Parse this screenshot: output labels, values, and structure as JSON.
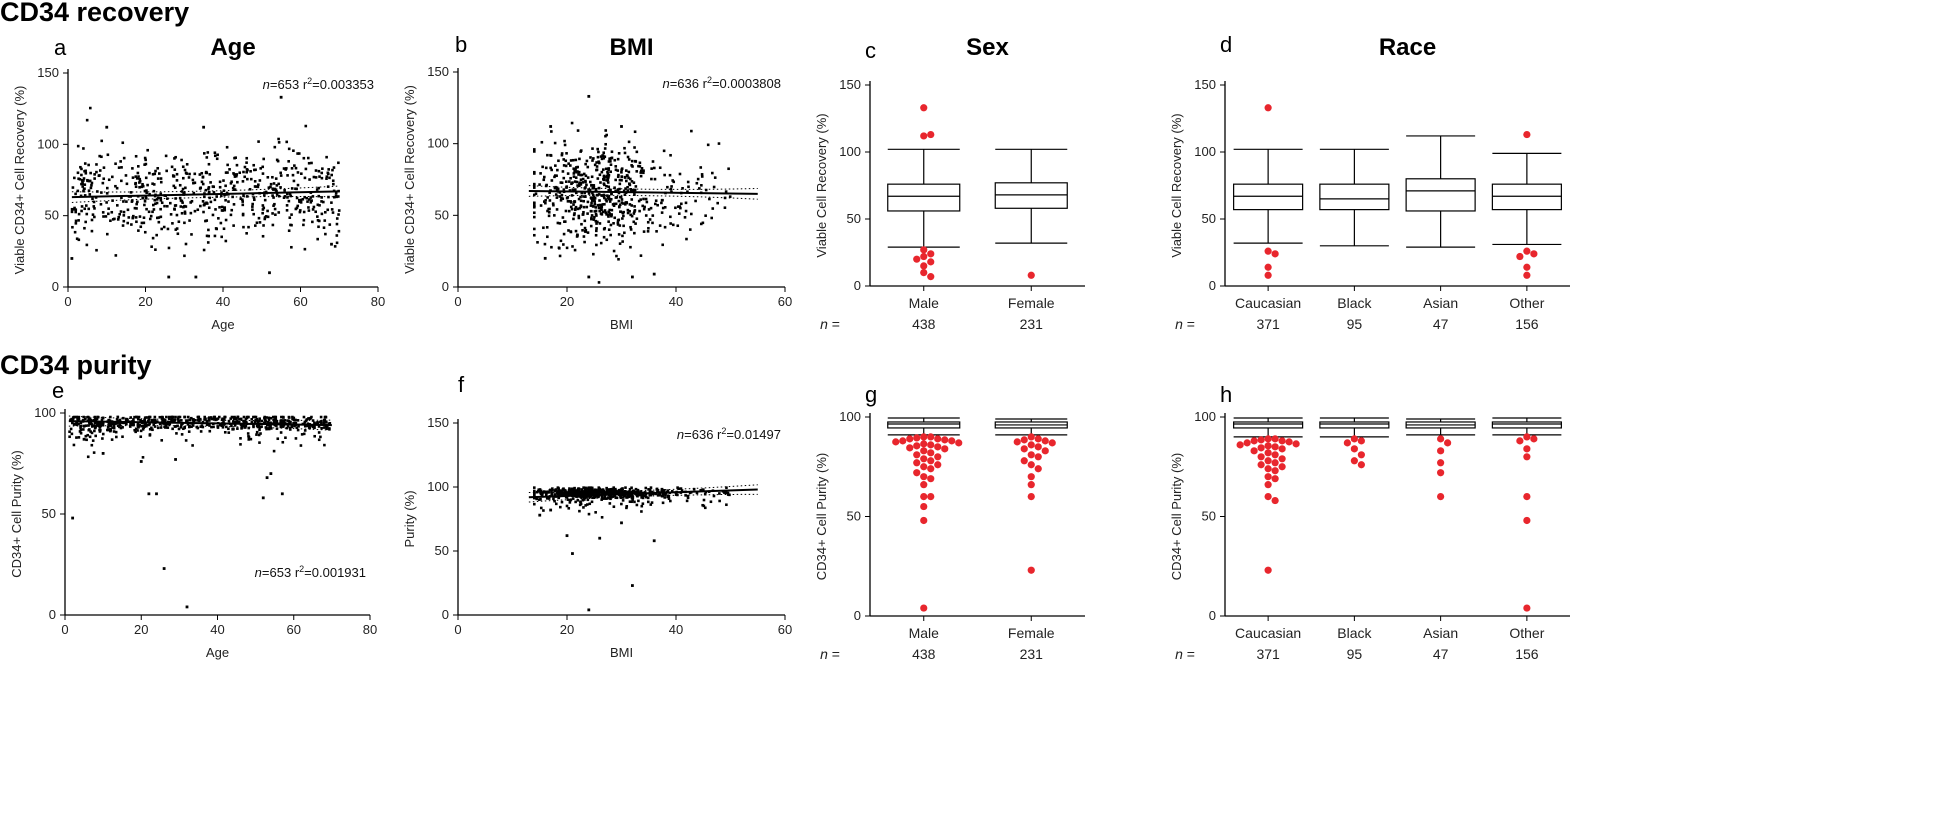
{
  "sections": {
    "recovery_title": "CD34 recovery",
    "purity_title": "CD34 purity"
  },
  "n_label": "n =",
  "colors": {
    "outlier": "#e8262d",
    "point": "#000000",
    "axis": "#000000"
  },
  "chart_data": [
    {
      "id": "a",
      "letter": "a",
      "type": "scatter",
      "title": "Age",
      "xlabel": "Age",
      "ylabel": "Viable CD34+ Cell Recovery (%)",
      "xlim": [
        0,
        80
      ],
      "ylim": [
        0,
        150
      ],
      "xticks": [
        0,
        20,
        40,
        60,
        80
      ],
      "yticks": [
        0,
        50,
        100,
        150
      ],
      "stat_n": "653",
      "stat_r2": "0.003353",
      "stat_pos": "top-right",
      "fit": [
        [
          1,
          63
        ],
        [
          70,
          67
        ]
      ],
      "gen": {
        "seed": 11,
        "count": 653,
        "xmin": 1,
        "xmax": 70,
        "xbias": "uniform",
        "ymean": 65,
        "ysd": 17
      },
      "outliers": [
        [
          55,
          133
        ],
        [
          10,
          112
        ],
        [
          35,
          112
        ],
        [
          26,
          7
        ],
        [
          33,
          7
        ],
        [
          52,
          10
        ],
        [
          1,
          20
        ],
        [
          68,
          30
        ]
      ]
    },
    {
      "id": "b",
      "letter": "b",
      "type": "scatter",
      "title": "BMI",
      "xlabel": "BMI",
      "ylabel": "Viable CD34+ Cell Recovery (%)",
      "xlim": [
        0,
        60
      ],
      "ylim": [
        0,
        150
      ],
      "xticks": [
        0,
        20,
        40,
        60
      ],
      "yticks": [
        0,
        50,
        100,
        150
      ],
      "stat_n": "636",
      "stat_r2": "0.0003808",
      "stat_pos": "top-right",
      "fit": [
        [
          13,
          67
        ],
        [
          55,
          65
        ]
      ],
      "gen": {
        "seed": 23,
        "count": 636,
        "xmin": 14,
        "xmax": 55,
        "xbias": "bmi",
        "ymean": 65,
        "ysd": 17
      },
      "outliers": [
        [
          24,
          133
        ],
        [
          17,
          112
        ],
        [
          30,
          112
        ],
        [
          16,
          20
        ],
        [
          24,
          7
        ],
        [
          32,
          7
        ],
        [
          36,
          9
        ]
      ]
    },
    {
      "id": "c",
      "letter": "c",
      "type": "boxplot",
      "title": "Sex",
      "xlabel": "",
      "ylabel": "Viable Cell Recovery (%)",
      "ylim": [
        0,
        150
      ],
      "yticks": [
        0,
        50,
        100,
        150
      ],
      "categories": [
        "Male",
        "Female"
      ],
      "n": [
        "438",
        "231"
      ],
      "boxes": [
        {
          "whisker_low": 29,
          "q1": 56,
          "median": 67,
          "q3": 76,
          "whisker_high": 102,
          "outliers": [
            133,
            112,
            113,
            27,
            24,
            22,
            20,
            18,
            15,
            10,
            7
          ]
        },
        {
          "whisker_low": 32,
          "q1": 58,
          "median": 68,
          "q3": 77,
          "whisker_high": 102,
          "outliers": [
            8
          ]
        }
      ]
    },
    {
      "id": "d",
      "letter": "d",
      "type": "boxplot",
      "title": "Race",
      "xlabel": "",
      "ylabel": "Viable Cell Recovery (%)",
      "ylim": [
        0,
        150
      ],
      "yticks": [
        0,
        50,
        100,
        150
      ],
      "categories": [
        "Caucasian",
        "Black",
        "Asian",
        "Other"
      ],
      "n": [
        "371",
        "95",
        "47",
        "156"
      ],
      "boxes": [
        {
          "whisker_low": 32,
          "q1": 57,
          "median": 67,
          "q3": 76,
          "whisker_high": 102,
          "outliers": [
            133,
            26,
            24,
            14,
            8
          ]
        },
        {
          "whisker_low": 30,
          "q1": 57,
          "median": 65,
          "q3": 76,
          "whisker_high": 102,
          "outliers": []
        },
        {
          "whisker_low": 29,
          "q1": 56,
          "median": 71,
          "q3": 80,
          "whisker_high": 112,
          "outliers": []
        },
        {
          "whisker_low": 31,
          "q1": 57,
          "median": 67,
          "q3": 76,
          "whisker_high": 99,
          "outliers": [
            113,
            26,
            24,
            22,
            14,
            8
          ]
        }
      ]
    },
    {
      "id": "e",
      "letter": "e",
      "type": "scatter",
      "title": "",
      "xlabel": "Age",
      "ylabel": "CD34+ Cell Purity (%)",
      "xlim": [
        0,
        80
      ],
      "ylim": [
        0,
        100
      ],
      "xticks": [
        0,
        20,
        40,
        60,
        80
      ],
      "yticks": [
        0,
        50,
        100
      ],
      "stat_n": "653",
      "stat_r2": "0.001931",
      "stat_pos": "bottom-right",
      "fit": [
        [
          1,
          96
        ],
        [
          70,
          94
        ]
      ],
      "gen": {
        "seed": 37,
        "count": 653,
        "xmin": 1,
        "xmax": 70,
        "xbias": "uniform",
        "ymean": 95.5,
        "ysd": 2.5,
        "skew": true
      },
      "outliers": [
        [
          2,
          48
        ],
        [
          26,
          23
        ],
        [
          32,
          4
        ],
        [
          22,
          60
        ],
        [
          24,
          60
        ],
        [
          52,
          58
        ],
        [
          57,
          60
        ],
        [
          53,
          68
        ],
        [
          54,
          70
        ],
        [
          5,
          87
        ],
        [
          10,
          80
        ],
        [
          20,
          76
        ],
        [
          29,
          77
        ]
      ]
    },
    {
      "id": "f",
      "letter": "f",
      "type": "scatter",
      "title": "",
      "xlabel": "BMI",
      "ylabel": "Purity (%)",
      "xlim": [
        0,
        60
      ],
      "ylim": [
        0,
        150
      ],
      "xticks": [
        0,
        20,
        40,
        60
      ],
      "yticks": [
        0,
        50,
        100,
        150
      ],
      "stat_n": "636",
      "stat_r2": "0.01497",
      "stat_pos": "top-right",
      "fit": [
        [
          13,
          92
        ],
        [
          55,
          98
        ]
      ],
      "gen": {
        "seed": 53,
        "count": 636,
        "xmin": 14,
        "xmax": 55,
        "xbias": "bmi",
        "ymean": 95.5,
        "ysd": 2.5,
        "skew": true
      },
      "outliers": [
        [
          21,
          48
        ],
        [
          24,
          4
        ],
        [
          32,
          23
        ],
        [
          36,
          58
        ],
        [
          26,
          60
        ],
        [
          20,
          62
        ],
        [
          15,
          78
        ],
        [
          17,
          82
        ],
        [
          30,
          72
        ]
      ]
    },
    {
      "id": "g",
      "letter": "g",
      "type": "boxplot",
      "title": "",
      "xlabel": "",
      "ylabel": "CD34+ Cell Purity (%)",
      "ylim": [
        0,
        100
      ],
      "yticks": [
        0,
        50,
        100
      ],
      "categories": [
        "Male",
        "Female"
      ],
      "n": [
        "438",
        "231"
      ],
      "boxes": [
        {
          "whisker_low": 91,
          "q1": 94.5,
          "median": 96.5,
          "q3": 97.5,
          "whisker_high": 99.5,
          "outliers": [
            90,
            90,
            89.5,
            89,
            89,
            88.5,
            88,
            88,
            87.5,
            87,
            86.5,
            86,
            85.5,
            85,
            84.5,
            84,
            83,
            82,
            81,
            80,
            79,
            78,
            77,
            76,
            75,
            74,
            72,
            70,
            69,
            66,
            60,
            60,
            55,
            48,
            4
          ]
        },
        {
          "whisker_low": 91,
          "q1": 94.5,
          "median": 96,
          "q3": 97.5,
          "whisker_high": 99,
          "outliers": [
            90,
            89,
            88.5,
            88,
            87.5,
            87,
            86,
            85,
            84,
            83,
            81,
            80,
            78,
            76,
            74,
            70,
            66,
            60,
            23
          ]
        }
      ]
    },
    {
      "id": "h",
      "letter": "h",
      "type": "boxplot",
      "title": "",
      "xlabel": "",
      "ylabel": "CD34+ Cell Purity (%)",
      "ylim": [
        0,
        100
      ],
      "yticks": [
        0,
        50,
        100
      ],
      "categories": [
        "Caucasian",
        "Black",
        "Asian",
        "Other"
      ],
      "n": [
        "371",
        "95",
        "47",
        "156"
      ],
      "boxes": [
        {
          "whisker_low": 90,
          "q1": 94.5,
          "median": 96.5,
          "q3": 97.5,
          "whisker_high": 99.5,
          "outliers": [
            89,
            89,
            88.5,
            88,
            88,
            87.5,
            87,
            86.5,
            86,
            85.5,
            85,
            84.5,
            84,
            83,
            82,
            81,
            80,
            79,
            78,
            77,
            76,
            75,
            74,
            73,
            70,
            69,
            66,
            60,
            58,
            23
          ]
        },
        {
          "whisker_low": 90,
          "q1": 94.5,
          "median": 96.5,
          "q3": 97.5,
          "whisker_high": 99.5,
          "outliers": [
            89,
            88,
            87,
            84,
            81,
            78,
            76
          ]
        },
        {
          "whisker_low": 91,
          "q1": 94.5,
          "median": 96,
          "q3": 97.5,
          "whisker_high": 99,
          "outliers": [
            89,
            87,
            83,
            77,
            72,
            60
          ]
        },
        {
          "whisker_low": 91,
          "q1": 94.5,
          "median": 96.5,
          "q3": 97.5,
          "whisker_high": 99.5,
          "outliers": [
            90,
            89,
            88,
            84,
            80,
            60,
            48,
            4
          ]
        }
      ]
    }
  ]
}
